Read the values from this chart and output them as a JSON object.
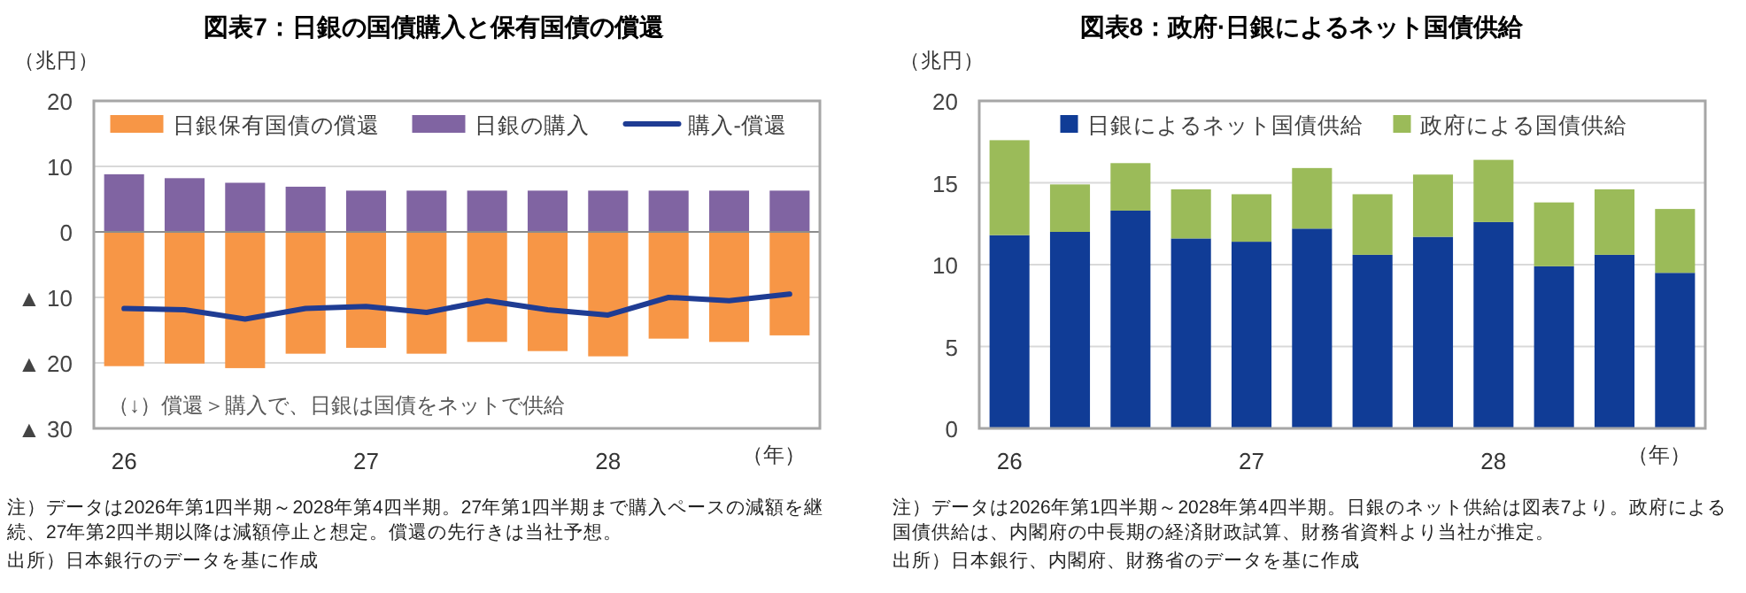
{
  "chart_data": [
    {
      "type": "bar",
      "stacked": true,
      "title": "図表7：日銀の国債購入と保有国債の償還",
      "ylabel": "（兆円）",
      "xlabel": "（年）",
      "categories": [
        "26",
        null,
        null,
        null,
        "27",
        null,
        null,
        null,
        "28",
        null,
        null,
        null
      ],
      "series": [
        {
          "name": "日銀保有国債の償還",
          "color": "#f79646",
          "values": [
            -20.5,
            -20.1,
            -20.8,
            -18.6,
            -17.7,
            -18.6,
            -16.8,
            -18.2,
            -19.0,
            -16.3,
            -16.8,
            -15.8
          ]
        },
        {
          "name": "日銀の購入",
          "color": "#8064a2",
          "values": [
            8.8,
            8.2,
            7.5,
            6.9,
            6.3,
            6.3,
            6.3,
            6.3,
            6.3,
            6.3,
            6.3,
            6.3
          ]
        },
        {
          "name": "購入-償還",
          "type": "line",
          "color": "#1f3c93",
          "values": [
            -11.7,
            -11.9,
            -13.3,
            -11.7,
            -11.4,
            -12.3,
            -10.5,
            -11.9,
            -12.7,
            -10.0,
            -10.5,
            -9.5
          ]
        }
      ],
      "ylim": [
        -30,
        20
      ],
      "yticks": [
        20,
        10,
        0,
        {
          "value": -10,
          "label": "▲ 10"
        },
        {
          "value": -20,
          "label": "▲ 20"
        },
        {
          "value": -30,
          "label": "▲ 30"
        }
      ],
      "grid": "y",
      "legend": "top",
      "annotations": [
        "（↓）償還＞購入で、日銀は国債をネットで供給",
        "注）データは2026年第1四半期～2028年第4四半期。27年第1四半期まで購入ペースの減額を継続、27年第2四半期以降は減額停止と想定。償還の先行きは当社予想。",
        "出所）日本銀行のデータを基に作成"
      ]
    },
    {
      "type": "bar",
      "stacked": true,
      "title": "図表8：政府·日銀によるネット国債供給",
      "ylabel": "（兆円）",
      "xlabel": "（年）",
      "categories": [
        "26",
        null,
        null,
        null,
        "27",
        null,
        null,
        null,
        "28",
        null,
        null,
        null
      ],
      "series": [
        {
          "name": "日銀によるネット国債供給",
          "color": "#103c96",
          "values": [
            11.8,
            12.0,
            13.3,
            11.6,
            11.4,
            12.2,
            10.6,
            11.7,
            12.6,
            9.9,
            10.6,
            9.5
          ]
        },
        {
          "name": "政府による国債供給",
          "color": "#9bbb59",
          "values": [
            5.8,
            2.9,
            2.9,
            3.0,
            2.9,
            3.7,
            3.7,
            3.8,
            3.8,
            3.9,
            4.0,
            3.9
          ]
        }
      ],
      "ylim": [
        0,
        20
      ],
      "yticks": [
        0,
        5,
        10,
        15,
        20
      ],
      "grid": "y",
      "legend": "top",
      "annotations": [
        "注）データは2026年第1四半期～2028年第4四半期。日銀のネット供給は図表7より。政府による国債供給は、内閣府の中長期の経済財政試算、財務省資料より当社が推定。",
        "出所）日本銀行、内閣府、財務省のデータを基に作成"
      ]
    }
  ]
}
